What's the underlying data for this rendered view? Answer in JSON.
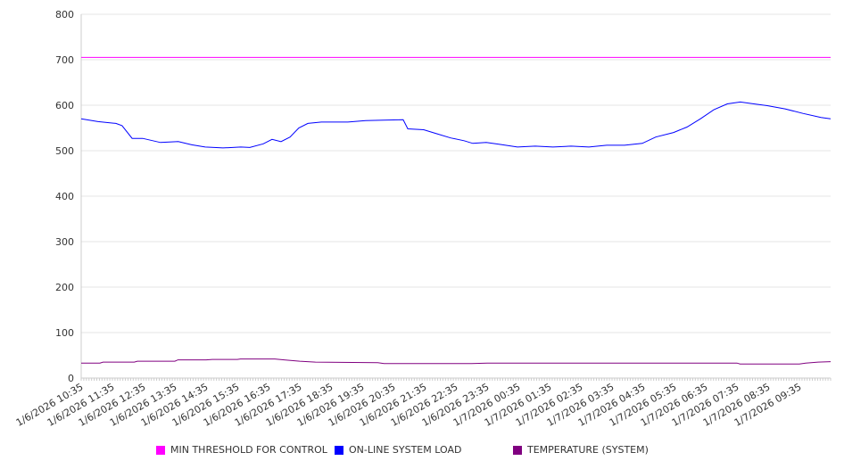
{
  "chart_data": {
    "type": "line",
    "title": "",
    "xlabel": "",
    "ylabel": "",
    "ylim": [
      0,
      800
    ],
    "yticks": [
      0,
      100,
      200,
      300,
      400,
      500,
      600,
      700,
      800
    ],
    "xlim_hours": [
      0,
      24
    ],
    "x_unit": "hours since 1/6/2026 10:35",
    "xtick_labels": [
      "1/6/2026 10:35",
      "1/6/2026 11:35",
      "1/6/2026 12:35",
      "1/6/2026 13:35",
      "1/6/2026 14:35",
      "1/6/2026 15:35",
      "1/6/2026 16:35",
      "1/6/2026 17:35",
      "1/6/2026 18:35",
      "1/6/2026 19:35",
      "1/6/2026 20:35",
      "1/6/2026 21:35",
      "1/6/2026 22:35",
      "1/6/2026 23:35",
      "1/7/2026 00:35",
      "1/7/2026 01:35",
      "1/7/2026 02:35",
      "1/7/2026 03:35",
      "1/7/2026 04:35",
      "1/7/2026 05:35",
      "1/7/2026 06:35",
      "1/7/2026 07:35",
      "1/7/2026 08:35",
      "1/7/2026 09:35"
    ],
    "grid": true,
    "legend_position": "bottom",
    "series": [
      {
        "name": "MIN THRESHOLD FOR CONTROL",
        "color": "#ff00ff",
        "x": [
          0,
          24
        ],
        "values": [
          705,
          705
        ]
      },
      {
        "name": "ON-LINE SYSTEM LOAD",
        "color": "#0000ff",
        "x": [
          0,
          0.54,
          1.11,
          1.31,
          1.63,
          1.97,
          2.54,
          3.11,
          3.54,
          3.97,
          4.54,
          5.11,
          5.4,
          5.83,
          6.11,
          6.4,
          6.69,
          6.97,
          7.26,
          7.69,
          8.54,
          9.11,
          9.69,
          10.31,
          10.46,
          10.97,
          11.4,
          11.83,
          12.26,
          12.54,
          12.97,
          13.4,
          13.97,
          14.54,
          15.11,
          15.69,
          16.26,
          16.83,
          17.4,
          17.97,
          18.4,
          18.97,
          19.4,
          19.83,
          20.26,
          20.69,
          21.11,
          21.54,
          21.97,
          22.54,
          23.11,
          23.69,
          24
        ],
        "values": [
          570,
          564,
          560,
          555,
          527,
          527,
          518,
          520,
          513,
          508,
          506,
          508,
          507,
          515,
          525,
          520,
          530,
          550,
          560,
          563,
          563,
          566,
          567,
          568,
          548,
          546,
          537,
          528,
          522,
          516,
          518,
          514,
          508,
          510,
          508,
          510,
          508,
          512,
          512,
          516,
          530,
          540,
          552,
          570,
          590,
          603,
          607,
          603,
          599,
          592,
          582,
          573,
          570
        ]
      },
      {
        "name": "TEMPERATURE (SYSTEM)",
        "color": "#800080",
        "x": [
          0,
          0.6,
          0.7,
          1.7,
          1.8,
          3.0,
          3.1,
          4.0,
          4.2,
          5.0,
          5.1,
          6.2,
          6.5,
          7.0,
          7.5,
          9.5,
          9.7,
          12.5,
          13.0,
          14.0,
          16.0,
          20.0,
          21.0,
          21.1,
          23.0,
          23.2,
          23.6,
          24
        ],
        "values": [
          33,
          33,
          35,
          35,
          37,
          37,
          40,
          40,
          41,
          41,
          42,
          42,
          40,
          37,
          35,
          34,
          32,
          32,
          33,
          33,
          33,
          33,
          33,
          31,
          31,
          33,
          35,
          36
        ]
      }
    ]
  }
}
